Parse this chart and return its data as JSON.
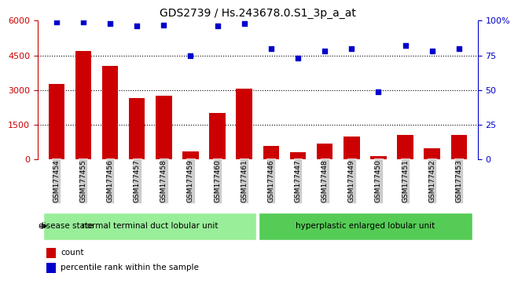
{
  "title": "GDS2739 / Hs.243678.0.S1_3p_a_at",
  "categories": [
    "GSM177454",
    "GSM177455",
    "GSM177456",
    "GSM177457",
    "GSM177458",
    "GSM177459",
    "GSM177460",
    "GSM177461",
    "GSM177446",
    "GSM177447",
    "GSM177448",
    "GSM177449",
    "GSM177450",
    "GSM177451",
    "GSM177452",
    "GSM177453"
  ],
  "counts": [
    3250,
    4700,
    4050,
    2650,
    2750,
    350,
    2000,
    3050,
    600,
    300,
    700,
    1000,
    150,
    1050,
    500,
    1050
  ],
  "percentiles": [
    99,
    99,
    98,
    96,
    97,
    75,
    96,
    98,
    80,
    73,
    78,
    80,
    49,
    82,
    78,
    80
  ],
  "ylim_left": [
    0,
    6000
  ],
  "ylim_right": [
    0,
    100
  ],
  "yticks_left": [
    0,
    1500,
    3000,
    4500,
    6000
  ],
  "yticks_right": [
    0,
    25,
    50,
    75,
    100
  ],
  "bar_color": "#cc0000",
  "scatter_color": "#0000cc",
  "group1_label": "normal terminal duct lobular unit",
  "group2_label": "hyperplastic enlarged lobular unit",
  "group1_count": 8,
  "group2_count": 8,
  "group1_color": "#99ee99",
  "group2_color": "#55cc55",
  "legend_count_label": "count",
  "legend_pct_label": "percentile rank within the sample",
  "disease_state_label": "disease state",
  "bg_color": "#ffffff",
  "tick_bg_color": "#cccccc"
}
